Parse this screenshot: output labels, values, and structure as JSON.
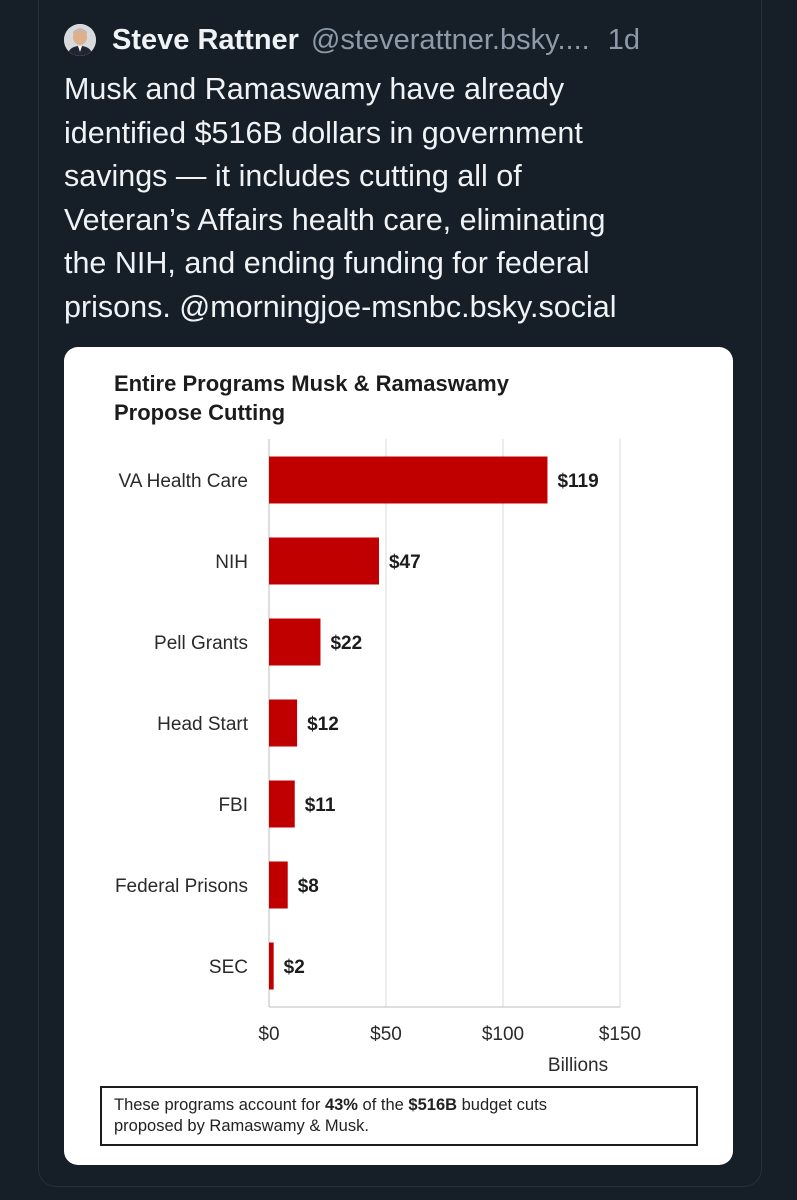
{
  "post": {
    "author_name": "Steve Rattner",
    "author_handle": "@steverattner.bsky....",
    "time": "1d",
    "avatar_icon": "person-avatar",
    "text_lines": [
      "Musk and Ramaswamy have already",
      "identified $516B dollars in government",
      "savings — it includes cutting all of",
      "Veteran’s Affairs health care, eliminating",
      "the NIH, and ending funding for federal",
      "prisons. @morningjoe-msnbc.bsky.social"
    ]
  },
  "chart_data": {
    "type": "bar",
    "orientation": "horizontal",
    "title_lines": [
      "Entire Programs Musk & Ramaswamy",
      "Propose Cutting"
    ],
    "categories": [
      "VA Health Care",
      "NIH",
      "Pell Grants",
      "Head Start",
      "FBI",
      "Federal Prisons",
      "SEC"
    ],
    "values": [
      119,
      47,
      22,
      12,
      11,
      8,
      2
    ],
    "value_labels": [
      "$119",
      "$47",
      "$22",
      "$12",
      "$11",
      "$8",
      "$2"
    ],
    "x_ticks": [
      0,
      50,
      100,
      150
    ],
    "x_tick_labels": [
      "$0",
      "$50",
      "$100",
      "$150"
    ],
    "xlabel": "Billions",
    "xlim": [
      0,
      150
    ],
    "grid": "vertical",
    "bar_color": "#c00000"
  },
  "note": {
    "pre": "These programs account for ",
    "pct": "43%",
    "mid": " of the ",
    "amount": "$516B",
    "post1": " budget cuts",
    "line2": "proposed by Ramaswamy & Musk."
  }
}
